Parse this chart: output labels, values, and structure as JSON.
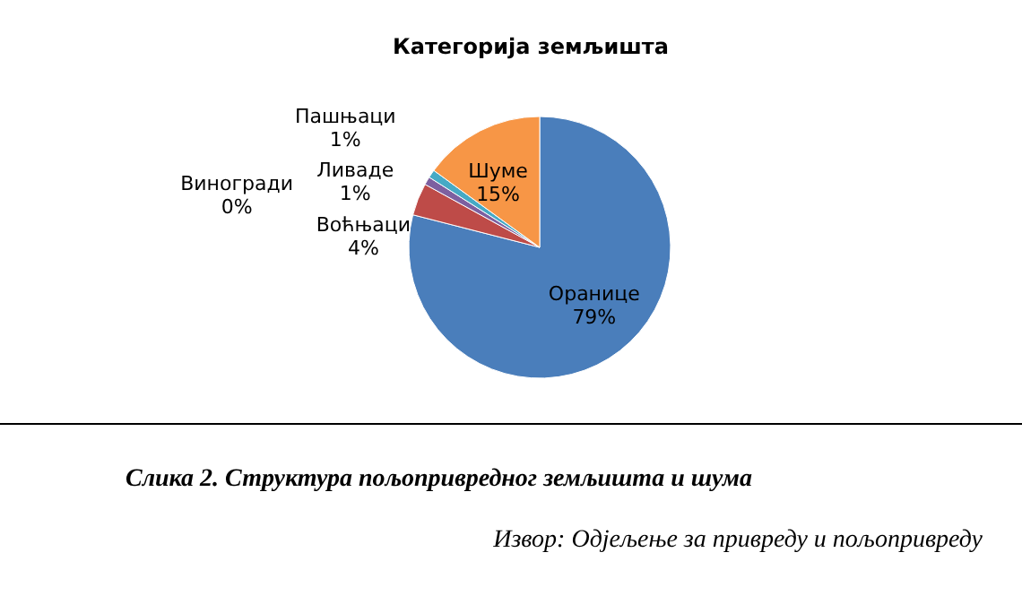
{
  "chart_data": {
    "type": "pie",
    "title": "Категорија земљишта",
    "categories": [
      "Оранице",
      "Воћњаци",
      "Виногради",
      "Ливаде",
      "Пашњаци",
      "Шуме"
    ],
    "values": [
      79,
      4,
      0,
      1,
      1,
      15
    ],
    "colors": [
      "#4a7ebb",
      "#be4b48",
      "#98b954",
      "#7d60a0",
      "#46aac5",
      "#f79646"
    ],
    "value_labels": [
      "79%",
      "4%",
      "0%",
      "1%",
      "1%",
      "15%"
    ],
    "legend": false,
    "annotations": [
      "Слика 2. Структура пољопривредног земљишта и шума",
      "Извор: Одјељење за привреду и пољопривреду"
    ]
  }
}
